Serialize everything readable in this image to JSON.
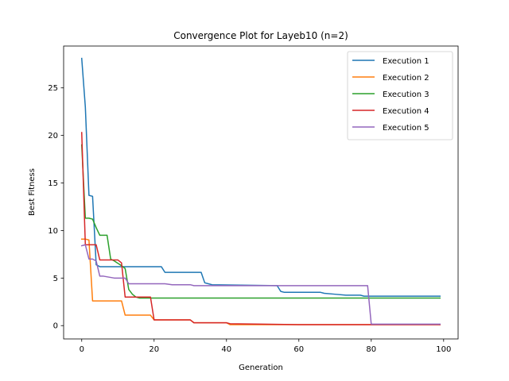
{
  "chart_data": {
    "type": "line",
    "title": "Convergence Plot for Layeb10 (n=2)",
    "xlabel": "Generation",
    "ylabel": "Best Fitness",
    "xlim": [
      -5,
      104
    ],
    "ylim": [
      -1.4,
      29.4
    ],
    "xticks": [
      0,
      20,
      40,
      60,
      80,
      100
    ],
    "yticks": [
      0,
      5,
      10,
      15,
      20,
      25
    ],
    "grid": false,
    "legend_position": "top-right",
    "series": [
      {
        "name": "Execution 1",
        "color": "#1f77b4",
        "x": [
          0,
          1,
          2,
          3,
          4,
          5,
          11,
          12,
          22,
          23,
          33,
          34,
          35,
          36,
          54,
          55,
          56,
          66,
          67,
          70,
          73,
          77,
          78,
          99
        ],
        "y": [
          28.1,
          23.0,
          13.7,
          13.6,
          6.4,
          6.2,
          6.2,
          6.2,
          6.2,
          5.6,
          5.6,
          4.5,
          4.4,
          4.3,
          4.2,
          3.6,
          3.5,
          3.5,
          3.4,
          3.3,
          3.2,
          3.2,
          3.1,
          3.1
        ]
      },
      {
        "name": "Execution 2",
        "color": "#ff7f0e",
        "x": [
          0,
          1,
          2,
          3,
          11,
          12,
          19,
          20,
          30,
          31,
          40,
          41,
          99
        ],
        "y": [
          9.1,
          9.1,
          9.0,
          2.6,
          2.6,
          1.1,
          1.1,
          0.6,
          0.6,
          0.3,
          0.3,
          0.1,
          0.1
        ]
      },
      {
        "name": "Execution 3",
        "color": "#2ca02c",
        "x": [
          0,
          1,
          2,
          3,
          4,
          5,
          6,
          7,
          8,
          9,
          11,
          12,
          13,
          14,
          15,
          16,
          22,
          23,
          99
        ],
        "y": [
          19.0,
          11.3,
          11.3,
          11.2,
          10.3,
          9.5,
          9.5,
          9.5,
          7.0,
          6.8,
          6.3,
          6.0,
          3.8,
          3.3,
          3.0,
          2.9,
          2.9,
          2.9,
          2.9
        ]
      },
      {
        "name": "Execution 4",
        "color": "#d62728",
        "x": [
          0,
          1,
          2,
          3,
          4,
          5,
          9,
          10,
          11,
          12,
          19,
          20,
          30,
          31,
          40,
          41,
          50,
          60,
          99
        ],
        "y": [
          20.3,
          8.5,
          8.5,
          8.5,
          8.5,
          6.9,
          6.9,
          6.9,
          6.6,
          3.0,
          3.0,
          0.6,
          0.6,
          0.3,
          0.3,
          0.2,
          0.15,
          0.1,
          0.1
        ]
      },
      {
        "name": "Execution 5",
        "color": "#9467bd",
        "x": [
          0,
          1,
          2,
          3,
          4,
          5,
          6,
          9,
          10,
          12,
          13,
          23,
          25,
          30,
          31,
          40,
          79,
          80,
          99
        ],
        "y": [
          8.4,
          8.5,
          7.0,
          7.0,
          6.8,
          5.2,
          5.2,
          5.0,
          5.0,
          5.0,
          4.4,
          4.4,
          4.3,
          4.3,
          4.2,
          4.2,
          4.2,
          0.15,
          0.15
        ]
      }
    ]
  }
}
